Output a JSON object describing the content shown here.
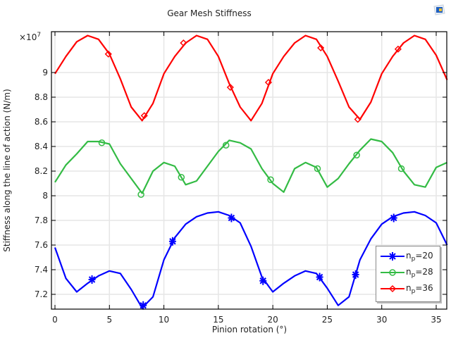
{
  "title": "Gear Mesh Stiffness",
  "toolbar": {
    "icon": "snapshot-icon"
  },
  "axes": {
    "xlabel": "Pinion rotation (°)",
    "ylabel": "Stiffness along the line of action (N/m)",
    "y_multiplier": "×10",
    "y_multiplier_exp": "7",
    "xticks": [
      "0",
      "5",
      "10",
      "15",
      "20",
      "25",
      "30",
      "35"
    ],
    "yticks": [
      "7.2",
      "7.4",
      "7.6",
      "7.8",
      "8",
      "8.2",
      "8.4",
      "8.6",
      "8.8",
      "9"
    ]
  },
  "legend": {
    "items": [
      {
        "prefix": "n",
        "sub": "p",
        "suffix": "=20",
        "color": "#0000ff",
        "marker": "asterisk"
      },
      {
        "prefix": "n",
        "sub": "p",
        "suffix": "=28",
        "color": "#33bb44",
        "marker": "circle"
      },
      {
        "prefix": "n",
        "sub": "p",
        "suffix": "=36",
        "color": "#ff0000",
        "marker": "diamond"
      }
    ]
  },
  "chart_data": {
    "type": "line",
    "title": "Gear Mesh Stiffness",
    "xlabel": "Pinion rotation (°)",
    "ylabel": "Stiffness along the line of action (N/m)",
    "y_scale_factor": 10000000.0,
    "xlim": [
      -0.3,
      36.3
    ],
    "ylim": [
      7.08,
      9.33
    ],
    "grid": true,
    "legend_position": "lower right",
    "x": [
      0,
      1,
      2,
      3,
      4,
      5,
      6,
      7,
      8,
      9,
      10,
      11,
      12,
      13,
      14,
      15,
      16,
      17,
      18,
      19,
      20,
      21,
      22,
      23,
      24,
      25,
      26,
      27,
      28,
      29,
      30,
      31,
      32,
      33,
      34,
      35,
      36
    ],
    "series": [
      {
        "name": "n_p=20",
        "color": "#0000ff",
        "marker": "asterisk",
        "values": [
          7.58,
          7.33,
          7.22,
          7.29,
          7.35,
          7.39,
          7.37,
          7.24,
          7.09,
          7.18,
          7.48,
          7.66,
          7.77,
          7.83,
          7.86,
          7.87,
          7.84,
          7.78,
          7.59,
          7.34,
          7.22,
          7.29,
          7.35,
          7.39,
          7.37,
          7.25,
          7.11,
          7.18,
          7.48,
          7.65,
          7.77,
          7.83,
          7.86,
          7.87,
          7.84,
          7.78,
          7.6
        ],
        "markers": [
          [
            3.4,
            7.32
          ],
          [
            8.1,
            7.11
          ],
          [
            10.8,
            7.63
          ],
          [
            16.2,
            7.82
          ],
          [
            19.1,
            7.31
          ],
          [
            24.3,
            7.34
          ],
          [
            27.6,
            7.36
          ],
          [
            31.1,
            7.82
          ]
        ]
      },
      {
        "name": "n_p=28",
        "color": "#33bb44",
        "marker": "circle",
        "values": [
          8.11,
          8.25,
          8.34,
          8.44,
          8.44,
          8.42,
          8.26,
          8.14,
          8.02,
          8.2,
          8.27,
          8.24,
          8.09,
          8.12,
          8.24,
          8.36,
          8.45,
          8.43,
          8.38,
          8.22,
          8.1,
          8.03,
          8.22,
          8.27,
          8.23,
          8.07,
          8.14,
          8.26,
          8.37,
          8.46,
          8.44,
          8.35,
          8.2,
          8.09,
          8.07,
          8.23,
          8.27
        ],
        "markers": [
          [
            4.3,
            8.43
          ],
          [
            7.9,
            8.01
          ],
          [
            11.6,
            8.15
          ],
          [
            15.7,
            8.41
          ],
          [
            19.8,
            8.13
          ],
          [
            24.1,
            8.22
          ],
          [
            27.7,
            8.33
          ],
          [
            31.8,
            8.22
          ]
        ]
      },
      {
        "name": "n_p=36",
        "color": "#ff0000",
        "marker": "diamond",
        "values": [
          8.99,
          9.13,
          9.25,
          9.3,
          9.27,
          9.15,
          8.95,
          8.72,
          8.61,
          8.75,
          8.99,
          9.13,
          9.24,
          9.3,
          9.27,
          9.13,
          8.91,
          8.72,
          8.61,
          8.75,
          8.99,
          9.13,
          9.24,
          9.3,
          9.27,
          9.13,
          8.93,
          8.72,
          8.62,
          8.76,
          8.99,
          9.13,
          9.24,
          9.3,
          9.27,
          9.14,
          8.94
        ],
        "markers": [
          [
            4.9,
            9.15
          ],
          [
            8.2,
            8.65
          ],
          [
            11.8,
            9.24
          ],
          [
            16.1,
            8.88
          ],
          [
            19.6,
            8.92
          ],
          [
            24.4,
            9.2
          ],
          [
            27.8,
            8.62
          ],
          [
            31.5,
            9.19
          ]
        ]
      }
    ]
  }
}
